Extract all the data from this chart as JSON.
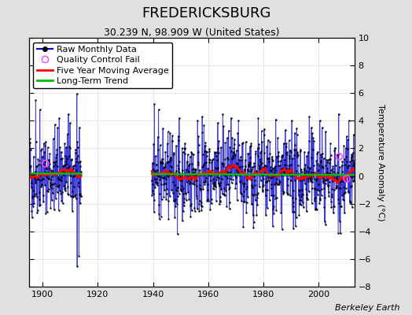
{
  "title": "FREDERICKSBURG",
  "subtitle": "30.239 N, 98.909 W (United States)",
  "attribution": "Berkeley Earth",
  "ylabel": "Temperature Anomaly (°C)",
  "ylim": [
    -8,
    10
  ],
  "yticks": [
    -8,
    -6,
    -4,
    -2,
    0,
    2,
    4,
    6,
    8,
    10
  ],
  "xlim": [
    1895,
    2013
  ],
  "xticks": [
    1900,
    1920,
    1940,
    1960,
    1980,
    2000
  ],
  "year_start": 1895,
  "year_end": 2012.99,
  "data_gap_start": 1914.0,
  "data_gap_end": 1939.5,
  "seed": 42,
  "raw_color": "#0000CC",
  "ma_color": "#FF0000",
  "trend_color": "#00BB00",
  "qc_color": "#FF44FF",
  "bg_color": "#E0E0E0",
  "plot_bg_color": "#FFFFFF",
  "grid_color": "#BBBBBB",
  "legend_items": [
    "Raw Monthly Data",
    "Quality Control Fail",
    "Five Year Moving Average",
    "Long-Term Trend"
  ],
  "title_fontsize": 13,
  "subtitle_fontsize": 9,
  "label_fontsize": 8,
  "tick_fontsize": 8,
  "attribution_fontsize": 8
}
